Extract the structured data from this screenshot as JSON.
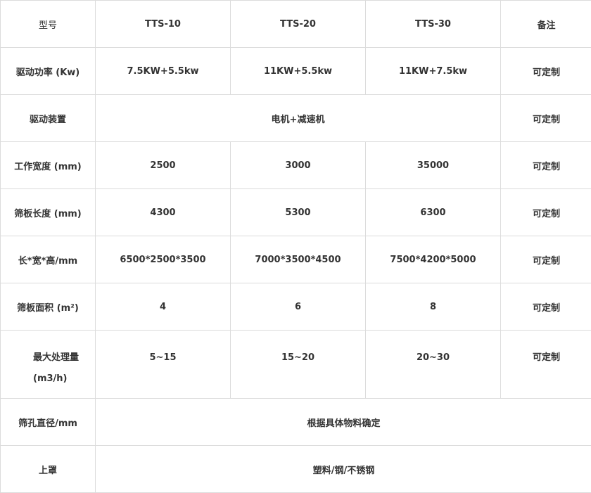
{
  "header": {
    "label": "型号",
    "models": [
      "TTS-10",
      "TTS-20",
      "TTS-30"
    ],
    "note": "备注"
  },
  "rows": [
    {
      "label": "驱动功率 (Kw)",
      "values": [
        "7.5KW+5.5kw",
        "11KW+5.5kw",
        "11KW+7.5kw"
      ],
      "note": "可定制"
    },
    {
      "label": "驱动装置",
      "merged": "电机+减速机",
      "note": "可定制"
    },
    {
      "label": "工作宽度 (mm)",
      "values": [
        "2500",
        "3000",
        "35000"
      ],
      "note": "可定制"
    },
    {
      "label": "筛板长度 (mm)",
      "values": [
        "4300",
        "5300",
        "6300"
      ],
      "note": "可定制"
    },
    {
      "label": "长*宽*高/mm",
      "values": [
        "6500*2500*3500",
        "7000*3500*4500",
        "7500*4200*5000"
      ],
      "note": "可定制"
    },
    {
      "label": "筛板面积 (m²)",
      "values": [
        "4",
        "6",
        "8"
      ],
      "note": "可定制"
    },
    {
      "label": "最大处理量",
      "label2": "(m3/h)",
      "values": [
        "5~15",
        "15~20",
        "20~30"
      ],
      "note": "可定制"
    },
    {
      "label": "筛孔直径/mm",
      "merged": "根据具体物料确定"
    },
    {
      "label": "上罩",
      "merged": "塑料/钢/不锈钢"
    }
  ]
}
